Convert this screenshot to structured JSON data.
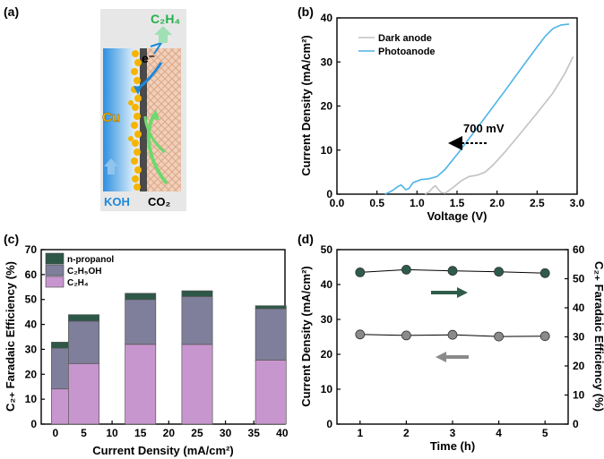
{
  "panel_labels": [
    "(a)",
    "(b)",
    "(c)",
    "(d)"
  ],
  "schematic": {
    "product": "C₂H₄",
    "electron": "e⁻",
    "catalyst": "Cu",
    "electrolyte": "KOH",
    "reactant": "CO₂"
  },
  "chart_data": [
    {
      "panel": "(b)",
      "type": "line",
      "xlabel": "Voltage (V)",
      "ylabel": "Current  Density (mA/cm²)",
      "xlim": [
        0.0,
        3.0
      ],
      "ylim": [
        0,
        40
      ],
      "xticks": [
        "0.0",
        "0.5",
        "1.0",
        "1.5",
        "2.0",
        "2.5",
        "3.0"
      ],
      "yticks": [
        "0",
        "10",
        "20",
        "30",
        "40"
      ],
      "annotation": "700 mV",
      "legend": "top-left",
      "series": [
        {
          "name": "Dark anode",
          "color": "#c2c2c2",
          "points": [
            [
              1.1,
              0.0
            ],
            [
              1.15,
              0.5
            ],
            [
              1.2,
              1.5
            ],
            [
              1.23,
              1.9
            ],
            [
              1.26,
              1.2
            ],
            [
              1.3,
              0.4
            ],
            [
              1.35,
              0.2
            ],
            [
              1.45,
              1.5
            ],
            [
              1.55,
              3.0
            ],
            [
              1.65,
              4.0
            ],
            [
              1.75,
              4.3
            ],
            [
              1.85,
              5.0
            ],
            [
              1.95,
              6.6
            ],
            [
              2.1,
              9.6
            ],
            [
              2.3,
              14.0
            ],
            [
              2.5,
              18.4
            ],
            [
              2.7,
              23.0
            ],
            [
              2.85,
              27.5
            ],
            [
              2.95,
              31.2
            ]
          ]
        },
        {
          "name": "Photoanode",
          "color": "#4fb4e6",
          "points": [
            [
              0.6,
              0.0
            ],
            [
              0.65,
              0.4
            ],
            [
              0.7,
              0.9
            ],
            [
              0.75,
              1.6
            ],
            [
              0.8,
              2.1
            ],
            [
              0.83,
              1.6
            ],
            [
              0.86,
              1.0
            ],
            [
              0.9,
              1.3
            ],
            [
              0.95,
              2.6
            ],
            [
              1.05,
              3.3
            ],
            [
              1.15,
              3.5
            ],
            [
              1.25,
              4.0
            ],
            [
              1.35,
              5.6
            ],
            [
              1.5,
              9.0
            ],
            [
              1.7,
              13.8
            ],
            [
              1.9,
              18.6
            ],
            [
              2.1,
              23.5
            ],
            [
              2.3,
              28.5
            ],
            [
              2.5,
              33.4
            ],
            [
              2.6,
              35.8
            ],
            [
              2.7,
              37.6
            ],
            [
              2.8,
              38.4
            ],
            [
              2.9,
              38.6
            ]
          ]
        }
      ]
    },
    {
      "panel": "(c)",
      "type": "bar",
      "stacked": true,
      "xlabel": "Current Density (mA/cm²)",
      "ylabel": "C₂₊ Faradaic Efficiency (%)",
      "xlim": [
        -2.5,
        40.5
      ],
      "ylim": [
        0,
        70
      ],
      "xticks": [
        "0",
        "5",
        "10",
        "15",
        "20",
        "25",
        "30",
        "35",
        "40"
      ],
      "yticks": [
        "0",
        "10",
        "20",
        "30",
        "40",
        "50",
        "60",
        "70"
      ],
      "legend": "top-left",
      "x": [
        2,
        5,
        15,
        25,
        38
      ],
      "series": [
        {
          "name": "C₂H₄",
          "color": "#c896cf",
          "values": [
            14.1,
            24.3,
            32.0,
            32.0,
            25.7
          ]
        },
        {
          "name": "C₂H₅OH",
          "color": "#7f7f9b",
          "values": [
            16.4,
            17.0,
            18.0,
            19.2,
            20.6
          ]
        },
        {
          "name": "n-propanol",
          "color": "#2d5848",
          "values": [
            2.4,
            2.6,
            2.5,
            2.3,
            1.2
          ]
        }
      ]
    },
    {
      "panel": "(d)",
      "type": "scatter",
      "xlabel": "Time (h)",
      "ylabel": "Current  Density (mA/cm²)",
      "y2label": "C₂₊ Faradaic Efficiency (%)",
      "xlim": [
        0.5,
        5.5
      ],
      "ylim": [
        0,
        50
      ],
      "y2lim": [
        0,
        60
      ],
      "xticks": [
        "1",
        "2",
        "3",
        "4",
        "5"
      ],
      "yticks": [
        "0",
        "10",
        "20",
        "30",
        "40",
        "50"
      ],
      "y2ticks": [
        "0",
        "10",
        "20",
        "30",
        "40",
        "50",
        "60"
      ],
      "series": [
        {
          "name": "Current Density",
          "axis": "left",
          "color": "#8a8a8a",
          "x": [
            1,
            2,
            3,
            4,
            5
          ],
          "values": [
            25.7,
            25.4,
            25.6,
            25.1,
            25.2
          ]
        },
        {
          "name": "C2+ Faradaic Efficiency",
          "axis": "right",
          "color": "#2e5c4a",
          "x": [
            1,
            2,
            3,
            4,
            5
          ],
          "values": [
            52.2,
            53.1,
            52.7,
            52.4,
            51.9
          ]
        }
      ]
    }
  ]
}
